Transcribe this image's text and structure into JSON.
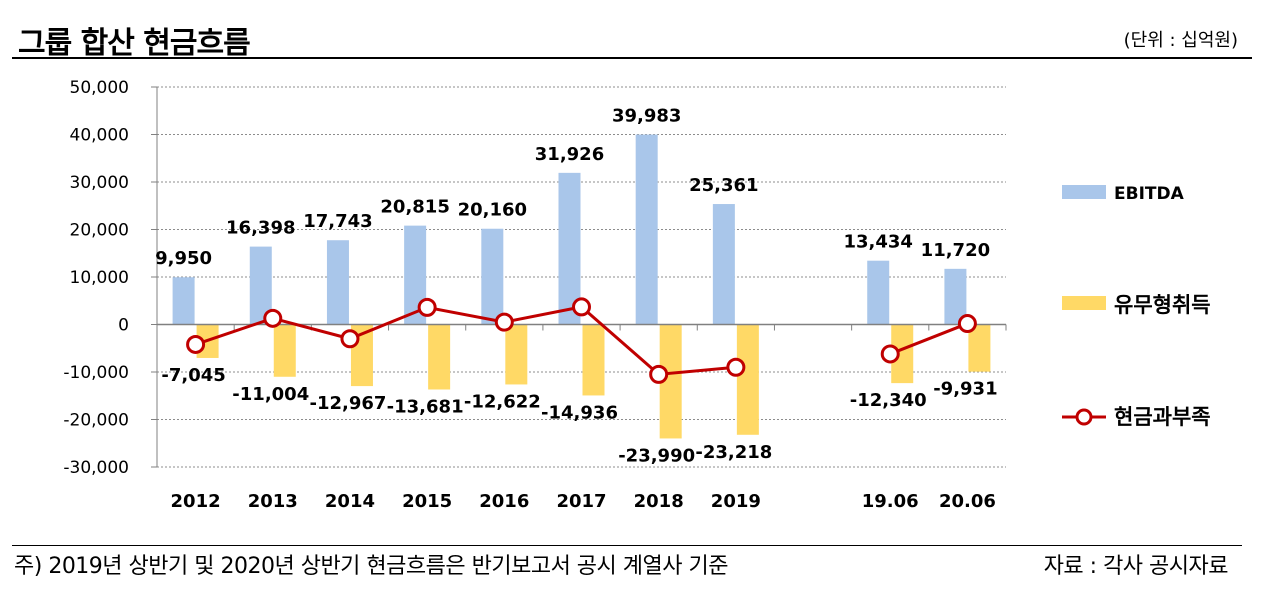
{
  "header": {
    "title": "그룹 합산 현금흐름",
    "unit": "(단위 : 십억원)"
  },
  "footer": {
    "note": "주) 2019년 상반기 및 2020년 상반기 현금흐름은 반기보고서 공시 계열사 기준",
    "source": "자료 : 각사 공시자료"
  },
  "colors": {
    "ebitda": "#A9C6EA",
    "capex": "#FFD966",
    "cash": "#C00000"
  },
  "chart_data": {
    "type": "bar",
    "categories": [
      "2012",
      "2013",
      "2014",
      "2015",
      "2016",
      "2017",
      "2018",
      "2019",
      "",
      "19.06",
      "20.06"
    ],
    "ylim": [
      -30000,
      50000
    ],
    "yticks": [
      "50,000",
      "40,000",
      "30,000",
      "20,000",
      "10,000",
      "0",
      "-10,000",
      "-20,000",
      "-30,000"
    ],
    "ytick_values": [
      50000,
      40000,
      30000,
      20000,
      10000,
      0,
      -10000,
      -20000,
      -30000
    ],
    "grid": true,
    "legend": "right",
    "series": [
      {
        "name": "EBITDA",
        "type": "bar",
        "values": [
          9950,
          16398,
          17743,
          20815,
          20160,
          31926,
          39983,
          25361,
          null,
          13434,
          11720
        ],
        "labels": [
          "9,950",
          "16,398",
          "17,743",
          "20,815",
          "20,160",
          "31,926",
          "39,983",
          "25,361",
          "",
          "13,434",
          "11,720"
        ]
      },
      {
        "name": "유무형취득",
        "type": "bar",
        "values": [
          -7045,
          -11004,
          -12967,
          -13681,
          -12622,
          -14936,
          -23990,
          -23218,
          null,
          -12340,
          -9931
        ],
        "labels": [
          "-7,045",
          "-11,004",
          "-12,967",
          "-13,681",
          "-12,622",
          "-14,936",
          "-23,990",
          "-23,218",
          "",
          "-12,340",
          "-9,931"
        ]
      },
      {
        "name": "현금과부족",
        "type": "line",
        "values": [
          -4200,
          1300,
          -3000,
          3600,
          500,
          3700,
          -10500,
          -9000,
          null,
          -6200,
          200
        ]
      }
    ]
  }
}
